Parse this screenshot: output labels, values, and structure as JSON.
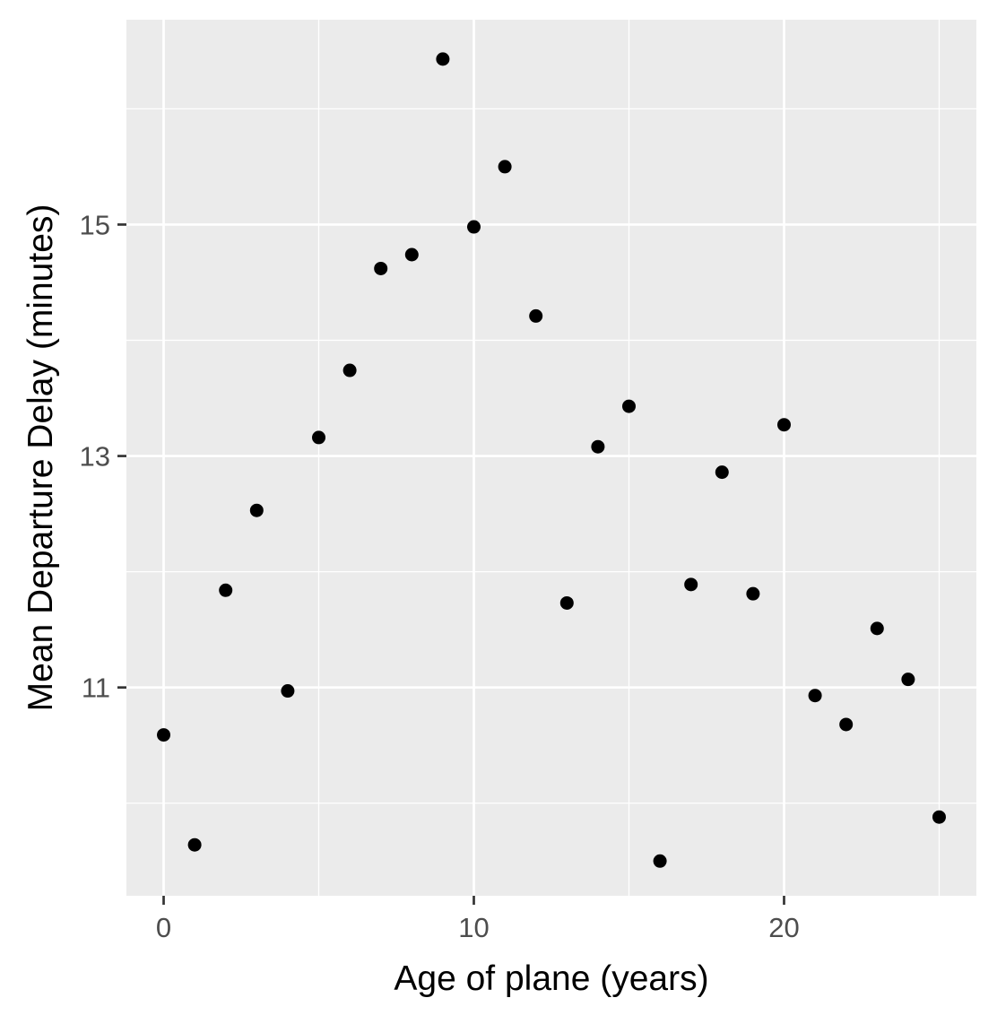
{
  "chart_data": {
    "type": "scatter",
    "title": "",
    "xlabel": "Age of plane (years)",
    "ylabel": "Mean Departure Delay (minutes)",
    "xlim": [
      -1.2,
      26.2
    ],
    "ylim": [
      9.2,
      16.77
    ],
    "x_ticks": [
      0,
      10,
      20
    ],
    "x_tick_labels": [
      "0",
      "10",
      "20"
    ],
    "y_ticks": [
      11,
      13,
      15
    ],
    "y_tick_labels": [
      "11",
      "13",
      "15"
    ],
    "x_minor_ticks": [
      5,
      15,
      25
    ],
    "y_minor_ticks": [
      10,
      12,
      14,
      16
    ],
    "grid": true,
    "legend": "none",
    "point_color": "#000000",
    "panel_color": "#ebebeb",
    "grid_color": "#ffffff",
    "series": [
      {
        "x": [
          0,
          1,
          2,
          3,
          4,
          5,
          6,
          7,
          8,
          9,
          10,
          11,
          12,
          13,
          14,
          15,
          16,
          17,
          18,
          19,
          20,
          21,
          22,
          23,
          24,
          25
        ],
        "y": [
          10.59,
          9.64,
          11.84,
          12.53,
          10.97,
          13.16,
          13.74,
          14.62,
          14.74,
          16.43,
          14.98,
          15.5,
          14.21,
          11.73,
          13.08,
          13.43,
          9.5,
          11.89,
          12.86,
          11.81,
          13.27,
          10.93,
          10.68,
          11.51,
          11.07,
          9.88
        ]
      }
    ]
  }
}
